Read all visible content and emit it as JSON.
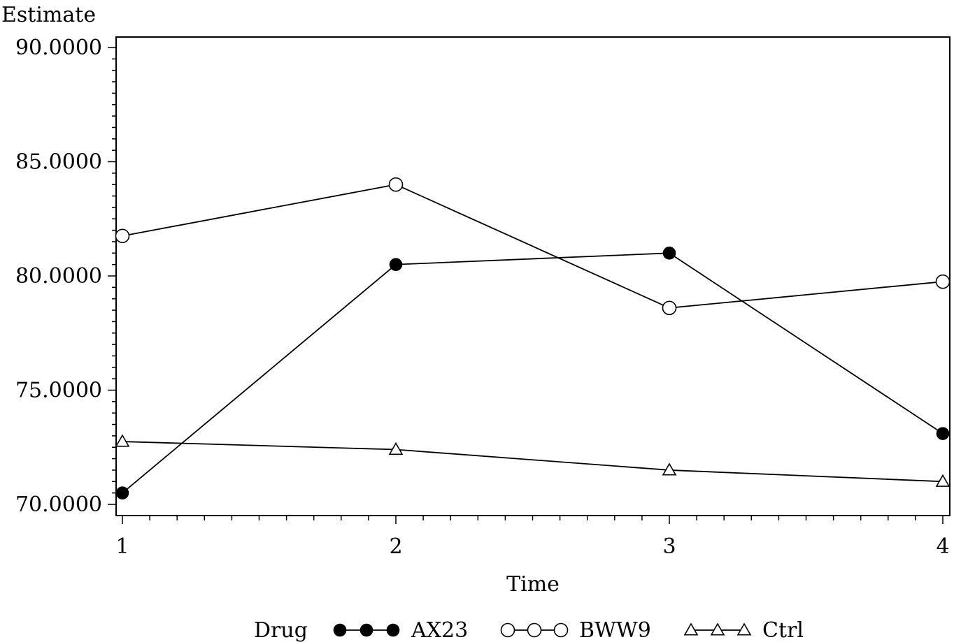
{
  "chart_data": {
    "type": "line",
    "title": "",
    "ylabel": "Estimate",
    "xlabel": "Time",
    "x": [
      1,
      2,
      3,
      4
    ],
    "xlim": [
      1,
      4
    ],
    "ylim": [
      70,
      90
    ],
    "y_ticks": [
      70,
      75,
      80,
      85,
      90
    ],
    "y_tick_labels": [
      "70.0000",
      "75.0000",
      "80.0000",
      "85.0000",
      "90.0000"
    ],
    "x_tick_labels": [
      "1",
      "2",
      "3",
      "4"
    ],
    "grid": false,
    "legend_position": "bottom",
    "legend_title": "Drug",
    "series": [
      {
        "name": "AX23",
        "marker": "filled-circle",
        "color": "#000000",
        "values": [
          70.5,
          80.5,
          81.0,
          73.1
        ]
      },
      {
        "name": "BWW9",
        "marker": "open-circle",
        "color": "#000000",
        "values": [
          81.75,
          84.0,
          78.6,
          79.75
        ]
      },
      {
        "name": "Ctrl",
        "marker": "open-triangle",
        "color": "#000000",
        "values": [
          72.75,
          72.4,
          71.5,
          71.0
        ]
      }
    ]
  }
}
